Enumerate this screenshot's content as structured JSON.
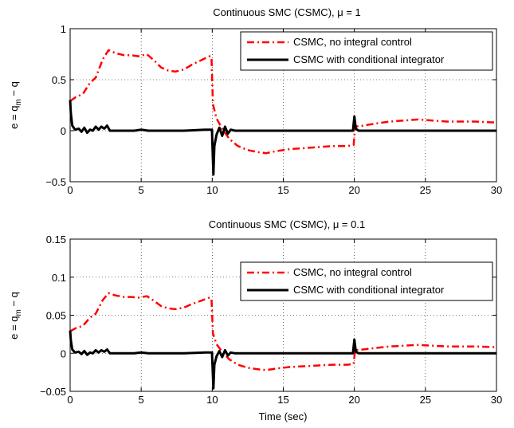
{
  "chart_data": [
    {
      "type": "line",
      "title": "Continuous SMC (CSMC), μ = 1",
      "xlabel": "",
      "ylabel": "e = q_m − q",
      "xlim": [
        0,
        30
      ],
      "ylim": [
        -0.5,
        1
      ],
      "xticks": [
        "0",
        "5",
        "10",
        "15",
        "20",
        "25",
        "30"
      ],
      "yticks": [
        "1",
        "0.5",
        "0",
        "−0.5"
      ],
      "grid": true,
      "legend": "top-right",
      "series": [
        {
          "name": "CSMC, no integral control",
          "color": "#ff0000",
          "style": "dashdot",
          "points": [
            [
              0,
              0.29
            ],
            [
              0.4,
              0.33
            ],
            [
              0.9,
              0.36
            ],
            [
              1.4,
              0.47
            ],
            [
              1.8,
              0.52
            ],
            [
              2.3,
              0.7
            ],
            [
              2.7,
              0.79
            ],
            [
              3.2,
              0.76
            ],
            [
              3.8,
              0.74
            ],
            [
              4.3,
              0.74
            ],
            [
              4.8,
              0.73
            ],
            [
              5.4,
              0.75
            ],
            [
              5.9,
              0.69
            ],
            [
              6.4,
              0.62
            ],
            [
              6.9,
              0.59
            ],
            [
              7.4,
              0.58
            ],
            [
              8,
              0.6
            ],
            [
              8.6,
              0.65
            ],
            [
              9.2,
              0.69
            ],
            [
              9.8,
              0.73
            ],
            [
              9.95,
              0.72
            ],
            [
              10.05,
              0.26
            ],
            [
              10.3,
              0.12
            ],
            [
              10.7,
              0.02
            ],
            [
              11.2,
              -0.08
            ],
            [
              11.8,
              -0.15
            ],
            [
              12.5,
              -0.19
            ],
            [
              13.2,
              -0.21
            ],
            [
              13.8,
              -0.22
            ],
            [
              14.5,
              -0.2
            ],
            [
              15.5,
              -0.18
            ],
            [
              16.5,
              -0.17
            ],
            [
              17.5,
              -0.16
            ],
            [
              18.5,
              -0.15
            ],
            [
              19.5,
              -0.15
            ],
            [
              19.95,
              -0.14
            ],
            [
              20.05,
              0.04
            ],
            [
              20.6,
              0.05
            ],
            [
              21.5,
              0.07
            ],
            [
              22.5,
              0.09
            ],
            [
              23.5,
              0.1
            ],
            [
              24.5,
              0.11
            ],
            [
              25.5,
              0.1
            ],
            [
              26.5,
              0.09
            ],
            [
              27.5,
              0.09
            ],
            [
              28.5,
              0.09
            ],
            [
              30,
              0.08
            ]
          ]
        },
        {
          "name": "CSMC with conditional integrator",
          "color": "#000000",
          "style": "solid",
          "points": [
            [
              0,
              0.3
            ],
            [
              0.05,
              0.17
            ],
            [
              0.15,
              0.05
            ],
            [
              0.35,
              0.01
            ],
            [
              0.6,
              0.02
            ],
            [
              0.8,
              -0.01
            ],
            [
              1.0,
              0.03
            ],
            [
              1.2,
              -0.02
            ],
            [
              1.4,
              0.01
            ],
            [
              1.6,
              0
            ],
            [
              1.8,
              0.04
            ],
            [
              2.0,
              0.01
            ],
            [
              2.2,
              0.04
            ],
            [
              2.4,
              0.02
            ],
            [
              2.6,
              0.05
            ],
            [
              2.8,
              0
            ],
            [
              3.5,
              0
            ],
            [
              4.5,
              0
            ],
            [
              5.0,
              0.01
            ],
            [
              5.5,
              0
            ],
            [
              6.5,
              0
            ],
            [
              8,
              0
            ],
            [
              9.5,
              0.01
            ],
            [
              9.98,
              0.01
            ],
            [
              10.02,
              -0.17
            ],
            [
              10.08,
              -0.43
            ],
            [
              10.15,
              -0.15
            ],
            [
              10.3,
              -0.04
            ],
            [
              10.5,
              0.03
            ],
            [
              10.7,
              -0.05
            ],
            [
              10.9,
              0.04
            ],
            [
              11.1,
              -0.03
            ],
            [
              11.3,
              0.01
            ],
            [
              11.6,
              0
            ],
            [
              13,
              0
            ],
            [
              16,
              0
            ],
            [
              19.9,
              0
            ],
            [
              20.0,
              0.14
            ],
            [
              20.1,
              0.02
            ],
            [
              20.3,
              0
            ],
            [
              22,
              0
            ],
            [
              26,
              0
            ],
            [
              30,
              0
            ]
          ]
        }
      ]
    },
    {
      "type": "line",
      "title": "Continuous SMC (CSMC), μ = 0.1",
      "xlabel": "Time (sec)",
      "ylabel": "e = q_m − q",
      "xlim": [
        0,
        30
      ],
      "ylim": [
        -0.05,
        0.15
      ],
      "xticks": [
        "0",
        "5",
        "10",
        "15",
        "20",
        "25",
        "30"
      ],
      "yticks": [
        "0.15",
        "0.1",
        "0.05",
        "0",
        "−0.05"
      ],
      "grid": true,
      "legend": "top-right",
      "series": [
        {
          "name": "CSMC, no integral control",
          "color": "#ff0000",
          "style": "dashdot",
          "points": [
            [
              0,
              0.029
            ],
            [
              0.4,
              0.033
            ],
            [
              0.9,
              0.036
            ],
            [
              1.4,
              0.047
            ],
            [
              1.8,
              0.052
            ],
            [
              2.3,
              0.07
            ],
            [
              2.7,
              0.079
            ],
            [
              3.2,
              0.076
            ],
            [
              3.8,
              0.074
            ],
            [
              4.3,
              0.074
            ],
            [
              4.8,
              0.073
            ],
            [
              5.4,
              0.075
            ],
            [
              5.9,
              0.069
            ],
            [
              6.4,
              0.062
            ],
            [
              6.9,
              0.059
            ],
            [
              7.4,
              0.058
            ],
            [
              8,
              0.06
            ],
            [
              8.6,
              0.065
            ],
            [
              9.2,
              0.069
            ],
            [
              9.8,
              0.073
            ],
            [
              9.95,
              0.072
            ],
            [
              10.05,
              0.026
            ],
            [
              10.3,
              0.012
            ],
            [
              10.7,
              0.002
            ],
            [
              11.2,
              -0.008
            ],
            [
              11.8,
              -0.015
            ],
            [
              12.5,
              -0.019
            ],
            [
              13.2,
              -0.021
            ],
            [
              13.8,
              -0.022
            ],
            [
              14.5,
              -0.02
            ],
            [
              15.5,
              -0.018
            ],
            [
              16.5,
              -0.017
            ],
            [
              17.5,
              -0.016
            ],
            [
              18.5,
              -0.015
            ],
            [
              19.5,
              -0.015
            ],
            [
              19.95,
              -0.014
            ],
            [
              20.05,
              0.004
            ],
            [
              20.6,
              0.005
            ],
            [
              21.5,
              0.007
            ],
            [
              22.5,
              0.009
            ],
            [
              23.5,
              0.01
            ],
            [
              24.5,
              0.011
            ],
            [
              25.5,
              0.01
            ],
            [
              26.5,
              0.009
            ],
            [
              27.5,
              0.009
            ],
            [
              28.5,
              0.009
            ],
            [
              30,
              0.008
            ]
          ]
        },
        {
          "name": "CSMC with conditional integrator",
          "color": "#000000",
          "style": "solid",
          "points": [
            [
              0,
              0.03
            ],
            [
              0.05,
              0.017
            ],
            [
              0.15,
              0.005
            ],
            [
              0.35,
              0.001
            ],
            [
              0.6,
              0.002
            ],
            [
              0.8,
              -0.001
            ],
            [
              1.0,
              0.003
            ],
            [
              1.2,
              -0.002
            ],
            [
              1.4,
              0.001
            ],
            [
              1.6,
              0
            ],
            [
              1.8,
              0.004
            ],
            [
              2.0,
              0.001
            ],
            [
              2.2,
              0.004
            ],
            [
              2.4,
              0.002
            ],
            [
              2.6,
              0.005
            ],
            [
              2.8,
              0
            ],
            [
              3.5,
              0
            ],
            [
              4.5,
              0
            ],
            [
              5.0,
              0.001
            ],
            [
              5.5,
              0
            ],
            [
              6.5,
              0
            ],
            [
              8,
              0
            ],
            [
              9.5,
              0.001
            ],
            [
              9.98,
              0.001
            ],
            [
              10.02,
              -0.017
            ],
            [
              10.08,
              -0.046
            ],
            [
              10.15,
              -0.015
            ],
            [
              10.3,
              -0.004
            ],
            [
              10.5,
              0.003
            ],
            [
              10.7,
              -0.005
            ],
            [
              10.9,
              0.004
            ],
            [
              11.1,
              -0.003
            ],
            [
              11.3,
              0.001
            ],
            [
              11.6,
              0
            ],
            [
              13,
              0
            ],
            [
              16,
              0
            ],
            [
              19.9,
              0
            ],
            [
              20.0,
              0.018
            ],
            [
              20.1,
              0.002
            ],
            [
              20.3,
              0
            ],
            [
              22,
              0
            ],
            [
              26,
              0
            ],
            [
              30,
              0
            ]
          ]
        }
      ]
    }
  ]
}
